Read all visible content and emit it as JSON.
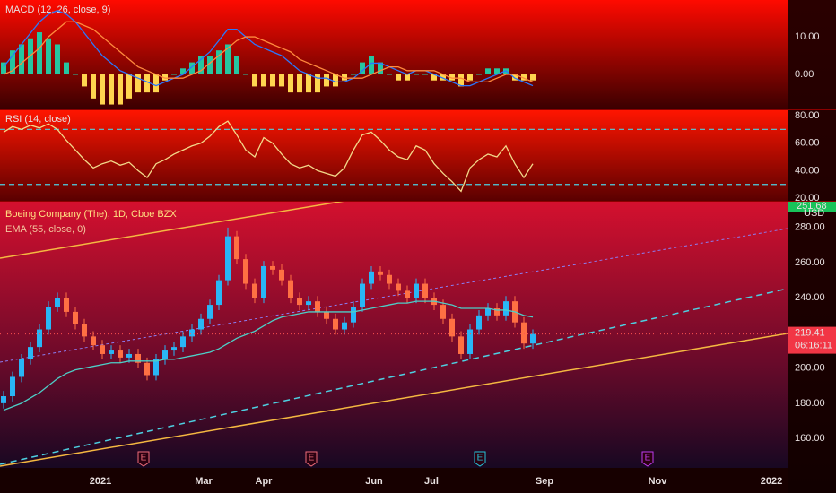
{
  "chart_data": [
    {
      "type": "macd",
      "title": "MACD (12, 26, close, 9)",
      "ylim": [
        -9.3,
        19.8
      ],
      "yticks": [
        {
          "value": 0,
          "label": "0.00"
        },
        {
          "value": 10,
          "label": "10.00"
        }
      ],
      "series": [
        {
          "color": "#2979ff",
          "values": [
            2,
            5,
            8,
            11,
            14,
            16,
            17,
            16,
            14,
            11,
            8,
            5,
            3,
            1,
            0,
            -1,
            -2,
            -3,
            -2,
            -1,
            0,
            2,
            4,
            6,
            9,
            12,
            12,
            10,
            8,
            7,
            6,
            5,
            3,
            1,
            0,
            -1,
            -1,
            -2,
            -2,
            -1,
            1,
            3,
            3,
            2,
            1,
            0,
            1,
            1,
            0,
            -1,
            -2,
            -3,
            -3,
            -2,
            -1,
            0,
            1,
            -1,
            -2,
            -3
          ]
        },
        {
          "color": "#ff8a3d",
          "values": [
            0,
            1,
            3,
            5,
            7,
            10,
            12,
            14,
            14,
            13,
            12,
            10,
            8,
            6,
            4,
            2,
            1,
            0,
            -1,
            -1,
            -1,
            0,
            1,
            3,
            5,
            7,
            9,
            10,
            10,
            9,
            8,
            7,
            6,
            4,
            3,
            2,
            1,
            0,
            -1,
            -1,
            -1,
            0,
            1,
            2,
            2,
            1,
            1,
            1,
            1,
            0,
            -1,
            -1,
            -2,
            -2,
            -2,
            -1,
            0,
            0,
            -1,
            -2
          ]
        }
      ],
      "histogram": {
        "up_color": "#26c6a0",
        "down_color": "#ffd54f",
        "values": [
          2,
          4,
          5,
          6,
          7,
          6,
          5,
          2,
          0,
          -2,
          -4,
          -5,
          -5,
          -5,
          -4,
          -3,
          -3,
          -3,
          -1,
          0,
          1,
          2,
          3,
          3,
          4,
          5,
          3,
          0,
          -2,
          -2,
          -2,
          -2,
          -3,
          -3,
          -3,
          -3,
          -2,
          -2,
          -1,
          0,
          2,
          3,
          2,
          0,
          -1,
          -1,
          0,
          0,
          -1,
          -1,
          -1,
          -2,
          -1,
          0,
          1,
          1,
          1,
          -1,
          -1,
          -1
        ]
      }
    },
    {
      "type": "rsi",
      "title": "RSI (14, close)",
      "ylim": [
        18.1,
        83.9
      ],
      "yticks": [
        {
          "value": 20,
          "label": "20.00"
        },
        {
          "value": 40,
          "label": "40.00"
        },
        {
          "value": 60,
          "label": "60.00"
        },
        {
          "value": 80,
          "label": "80.00"
        }
      ],
      "bands": [
        70,
        30
      ],
      "band_color": "#4dd0e1",
      "color": "#f3d98a",
      "values": [
        68,
        72,
        70,
        73,
        71,
        74,
        70,
        62,
        55,
        48,
        42,
        45,
        47,
        44,
        46,
        40,
        35,
        45,
        48,
        52,
        55,
        58,
        60,
        65,
        72,
        76,
        66,
        55,
        50,
        64,
        60,
        52,
        45,
        42,
        44,
        40,
        38,
        36,
        42,
        55,
        66,
        68,
        62,
        55,
        50,
        48,
        58,
        55,
        45,
        38,
        32,
        25,
        42,
        48,
        52,
        50,
        58,
        45,
        35,
        45
      ]
    },
    {
      "type": "candlestick",
      "title": "Boeing Company (The), 1D, Cboe BZX",
      "subtitle": "EMA (55, close, 0)",
      "ylim": [
        143.2,
        294.7
      ],
      "yticks": [
        {
          "value": 160,
          "label": "160.00"
        },
        {
          "value": 180,
          "label": "180.00"
        },
        {
          "value": 200,
          "label": "200.00"
        },
        {
          "value": 220,
          "label": "220.00"
        },
        {
          "value": 240,
          "label": "240.00"
        },
        {
          "value": 260,
          "label": "260.00"
        },
        {
          "value": 280,
          "label": "280.00"
        }
      ],
      "up_color": "#29b6f6",
      "down_color": "#ff7043",
      "open": [
        180,
        184,
        195,
        205,
        212,
        222,
        235,
        240,
        232,
        225,
        218,
        213,
        208,
        210,
        206,
        208,
        203,
        196,
        205,
        210,
        212,
        218,
        222,
        228,
        236,
        250,
        275,
        262,
        248,
        240,
        258,
        256,
        250,
        240,
        236,
        238,
        232,
        228,
        222,
        226,
        235,
        248,
        255,
        253,
        248,
        244,
        240,
        248,
        240,
        236,
        228,
        218,
        208,
        222,
        230,
        234,
        230,
        238,
        226,
        214
      ],
      "high": [
        187,
        198,
        208,
        215,
        225,
        238,
        243,
        243,
        235,
        228,
        221,
        216,
        213,
        213,
        211,
        211,
        206,
        208,
        213,
        215,
        221,
        225,
        231,
        239,
        253,
        280,
        278,
        265,
        251,
        261,
        261,
        259,
        253,
        243,
        241,
        241,
        235,
        231,
        229,
        238,
        251,
        258,
        258,
        256,
        251,
        247,
        251,
        251,
        243,
        239,
        231,
        221,
        225,
        233,
        237,
        237,
        241,
        241,
        229,
        222
      ],
      "low": [
        177,
        181,
        192,
        202,
        209,
        219,
        232,
        229,
        222,
        215,
        210,
        205,
        205,
        203,
        203,
        200,
        193,
        193,
        202,
        207,
        209,
        215,
        219,
        225,
        233,
        247,
        259,
        245,
        237,
        237,
        253,
        247,
        237,
        233,
        233,
        229,
        225,
        219,
        219,
        223,
        232,
        245,
        250,
        245,
        241,
        237,
        237,
        237,
        233,
        225,
        215,
        205,
        205,
        219,
        227,
        227,
        227,
        223,
        211,
        211
      ],
      "close": [
        184,
        195,
        205,
        212,
        222,
        235,
        240,
        232,
        225,
        218,
        213,
        208,
        210,
        206,
        208,
        203,
        196,
        205,
        210,
        212,
        218,
        222,
        228,
        236,
        250,
        275,
        262,
        248,
        240,
        258,
        256,
        250,
        240,
        236,
        238,
        232,
        228,
        222,
        226,
        235,
        248,
        255,
        253,
        248,
        244,
        240,
        248,
        240,
        236,
        228,
        218,
        208,
        222,
        230,
        234,
        230,
        238,
        226,
        214,
        219.41
      ],
      "ema": {
        "color": "#4dd0c8",
        "values": [
          176,
          178,
          180,
          183,
          186,
          190,
          194,
          197,
          199,
          200,
          201,
          202,
          203,
          203,
          204,
          204,
          204,
          204,
          205,
          205,
          206,
          207,
          208,
          209,
          211,
          214,
          217,
          219,
          221,
          224,
          227,
          229,
          230,
          231,
          232,
          232,
          232,
          232,
          232,
          232,
          233,
          234,
          235,
          236,
          237,
          237,
          238,
          238,
          238,
          237,
          236,
          234,
          234,
          234,
          234,
          233,
          233,
          232,
          230,
          229
        ]
      },
      "currency": "USD",
      "top_price_label": "251.68",
      "countdown": "06:16:11",
      "x_labels": [
        "2021",
        "Mar",
        "Apr",
        "Jun",
        "Jul",
        "Sep",
        "Nov",
        "2022"
      ],
      "events": [
        {
          "label": "E",
          "color": "#ef6c7a"
        },
        {
          "label": "E",
          "color": "#ef6c7a"
        },
        {
          "label": "E",
          "color": "#26c6da"
        },
        {
          "label": "E",
          "color": "#c03cf0"
        }
      ]
    }
  ]
}
